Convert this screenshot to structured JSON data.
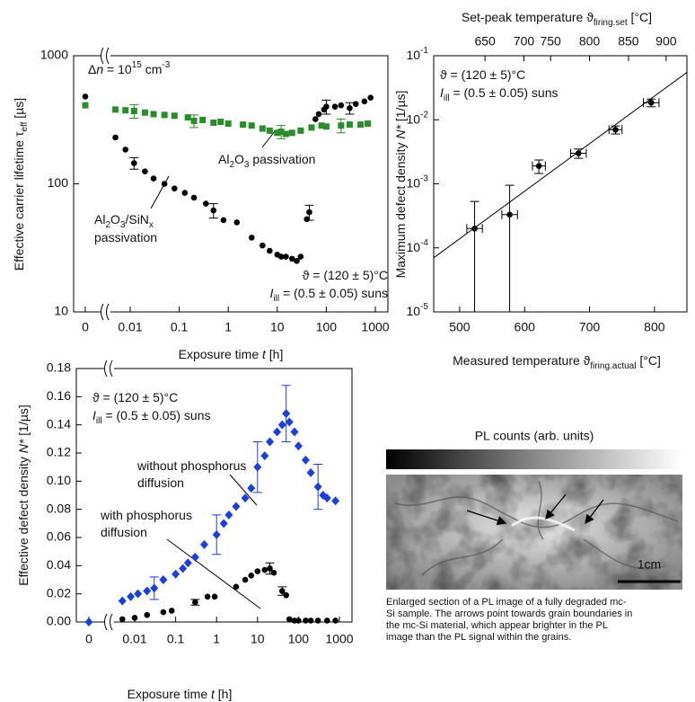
{
  "chart_data": [
    {
      "type": "scatter",
      "xlog": true,
      "ylog": true,
      "xlabel": [
        "Exposure time ",
        {
          "i": "t"
        },
        " [h]"
      ],
      "ylabel": [
        "Effective carrier lifetime τ",
        {
          "sub": "eff"
        },
        " [µs]"
      ],
      "xlim": [
        0,
        1000
      ],
      "ylim": [
        10,
        1000
      ],
      "xticks": [
        0,
        0.01,
        0.1,
        1,
        10,
        100,
        1000
      ],
      "yticks": [
        10,
        100,
        1000
      ],
      "annotations": [
        [
          "Δ",
          {
            "i": "n"
          },
          " = 10",
          {
            "sup": "15"
          },
          " cm",
          {
            "sup": "-3"
          }
        ],
        [
          "ϑ = (120 ± 5)°C"
        ],
        [
          {
            "i": "I"
          },
          {
            "sub": "ill"
          },
          " = (0.5 ± 0.05) suns"
        ],
        [
          "Al",
          {
            "sub": "2"
          },
          "O",
          {
            "sub": "3"
          },
          " passivation"
        ],
        [
          "Al",
          {
            "sub": "2"
          },
          "O",
          {
            "sub": "3"
          },
          "/SiN",
          {
            "sub": "x"
          }
        ],
        [
          "passivation"
        ]
      ],
      "series": [
        {
          "color": "#000000",
          "marker": "circle",
          "x": [
            0,
            0.005,
            0.008,
            0.012,
            0.02,
            0.03,
            0.05,
            0.08,
            0.13,
            0.2,
            0.35,
            0.5,
            0.8,
            1.5,
            3,
            5,
            7,
            10,
            12,
            15,
            20,
            25,
            30,
            40,
            45,
            60,
            70,
            90,
            100,
            150,
            200,
            300,
            400,
            600,
            800
          ],
          "values": [
            480,
            230,
            185,
            145,
            125,
            110,
            100,
            92,
            85,
            78,
            70,
            62,
            52,
            50,
            38,
            33,
            30,
            28,
            27,
            27,
            26,
            25,
            27,
            53,
            60,
            320,
            350,
            380,
            400,
            400,
            410,
            390,
            420,
            440,
            470
          ],
          "yerr": [
            null,
            null,
            null,
            15,
            null,
            null,
            null,
            null,
            null,
            null,
            null,
            8,
            null,
            null,
            null,
            null,
            null,
            null,
            null,
            null,
            null,
            null,
            null,
            null,
            8,
            null,
            null,
            null,
            50,
            null,
            null,
            40,
            null,
            null,
            null
          ]
        },
        {
          "color": "#2a8c2a",
          "marker": "square",
          "x": [
            0,
            0.005,
            0.008,
            0.012,
            0.02,
            0.03,
            0.05,
            0.08,
            0.15,
            0.2,
            0.3,
            0.5,
            0.7,
            1,
            2,
            3,
            5,
            7,
            10,
            12,
            15,
            20,
            30,
            50,
            80,
            100,
            200,
            300,
            500,
            700
          ],
          "values": [
            410,
            380,
            375,
            370,
            360,
            350,
            345,
            340,
            330,
            310,
            315,
            300,
            305,
            295,
            290,
            285,
            270,
            260,
            250,
            255,
            245,
            250,
            260,
            275,
            285,
            280,
            285,
            290,
            290,
            295
          ],
          "yerr": [
            null,
            null,
            null,
            45,
            null,
            null,
            null,
            null,
            null,
            35,
            null,
            null,
            null,
            null,
            null,
            null,
            null,
            null,
            null,
            30,
            null,
            null,
            null,
            null,
            null,
            null,
            35,
            null,
            null,
            null
          ]
        }
      ]
    },
    {
      "type": "scatter",
      "ylog": true,
      "xlabel": [
        "Measured temperature ϑ",
        {
          "sub": "firing.actual"
        },
        " [°C]"
      ],
      "x2label": [
        "Set-peak temperature ϑ",
        {
          "sub": "firing.set"
        },
        " [°C]"
      ],
      "ylabel": [
        "Maximum defect density ",
        {
          "i": "N*"
        },
        " [1/µs]"
      ],
      "xlim": [
        460,
        850
      ],
      "xticks": [
        500,
        600,
        700,
        800
      ],
      "x2ticks": [
        {
          "value": 539,
          "label": "650"
        },
        {
          "value": 599,
          "label": "700"
        },
        {
          "value": 640,
          "label": "750"
        },
        {
          "value": 700,
          "label": "800"
        },
        {
          "value": 760,
          "label": "850"
        },
        {
          "value": 818,
          "label": "900"
        }
      ],
      "ylim": [
        1e-05,
        0.1
      ],
      "yticks": [
        {
          "value": 1e-05,
          "label": [
            "10",
            {
              "sup": "-5"
            }
          ]
        },
        {
          "value": 0.0001,
          "label": [
            "10",
            {
              "sup": "-4"
            }
          ]
        },
        {
          "value": 0.001,
          "label": [
            "10",
            {
              "sup": "-3"
            }
          ]
        },
        {
          "value": 0.01,
          "label": [
            "10",
            {
              "sup": "-2"
            }
          ]
        },
        {
          "value": 0.1,
          "label": [
            "10",
            {
              "sup": "-1"
            }
          ]
        }
      ],
      "annotations": [
        [
          "ϑ = (120 ± 5)°C"
        ],
        [
          {
            "i": "I"
          },
          {
            "sub": "ill"
          },
          " = (0.5 ± 0.05) suns"
        ]
      ],
      "series": [
        {
          "color": "#000000",
          "marker": "circle",
          "x": [
            523,
            577,
            622,
            683,
            740,
            795
          ],
          "xerr": [
            12,
            12,
            10,
            12,
            10,
            12
          ],
          "values": [
            0.0002,
            0.00033,
            0.0019,
            0.003,
            0.007,
            0.0185
          ],
          "yerr": [
            0.00033,
            0.00062,
            0.00045,
            0.0005,
            0.001,
            0.0025
          ]
        }
      ],
      "fit": {
        "x": [
          460,
          850
        ],
        "values": [
          7e-05,
          0.055
        ]
      }
    },
    {
      "type": "scatter",
      "xlog": true,
      "xlabel": [
        "Exposure time ",
        {
          "i": "t"
        },
        " [h]"
      ],
      "ylabel": [
        "Effective defect density ",
        {
          "i": "N*"
        },
        " [1/µs]"
      ],
      "xlim": [
        0,
        1000
      ],
      "ylim": [
        0,
        0.18
      ],
      "xticks": [
        0,
        0.01,
        0.1,
        1,
        10,
        100,
        1000
      ],
      "yticks": [
        {
          "value": 0,
          "label": "0.00"
        },
        0.02,
        0.04,
        0.06,
        0.08,
        {
          "value": 0.1,
          "label": "0.10"
        },
        0.12,
        0.14,
        0.16,
        0.18
      ],
      "annotations": [
        [
          "ϑ = (120 ± 5)°C"
        ],
        [
          {
            "i": "I"
          },
          {
            "sub": "ill"
          },
          " = (0.5 ± 0.05) suns"
        ],
        [
          "without phosphorus"
        ],
        [
          "diffusion"
        ],
        [
          "with phosphorus"
        ],
        [
          "diffusion"
        ]
      ],
      "series": [
        {
          "color": "#1a3fe0",
          "marker": "diamond",
          "x": [
            0,
            0.005,
            0.008,
            0.012,
            0.02,
            0.03,
            0.05,
            0.1,
            0.15,
            0.2,
            0.3,
            0.5,
            1,
            1.5,
            2,
            3,
            5,
            7,
            10,
            15,
            20,
            30,
            40,
            50,
            60,
            80,
            100,
            150,
            200,
            300,
            400,
            500,
            800
          ],
          "values": [
            0,
            0.015,
            0.018,
            0.02,
            0.022,
            0.024,
            0.03,
            0.034,
            0.038,
            0.042,
            0.046,
            0.055,
            0.062,
            0.07,
            0.076,
            0.082,
            0.088,
            0.095,
            0.11,
            0.118,
            0.128,
            0.135,
            0.14,
            0.148,
            0.142,
            0.135,
            0.125,
            0.115,
            0.106,
            0.096,
            0.09,
            0.088,
            0.086
          ],
          "yerr": [
            null,
            null,
            null,
            null,
            null,
            0.008,
            null,
            null,
            null,
            null,
            null,
            null,
            0.014,
            null,
            null,
            null,
            null,
            null,
            0.018,
            null,
            null,
            null,
            null,
            0.02,
            null,
            null,
            null,
            null,
            null,
            0.016,
            null,
            null,
            null
          ]
        },
        {
          "color": "#000000",
          "marker": "circle",
          "x": [
            0.005,
            0.01,
            0.02,
            0.05,
            0.08,
            0.3,
            0.6,
            0.9,
            3,
            5,
            7,
            10,
            15,
            20,
            25,
            40,
            50,
            60,
            80,
            100,
            150,
            200,
            300,
            500,
            800
          ],
          "values": [
            0.002,
            0.003,
            0.005,
            0.007,
            0.008,
            0.014,
            0.018,
            0.018,
            0.025,
            0.03,
            0.033,
            0.036,
            0.037,
            0.038,
            0.035,
            0.022,
            0.019,
            0.002,
            0.001,
            0.001,
            0.001,
            0.001,
            0.001,
            0.001,
            0.001
          ],
          "yerr": [
            null,
            null,
            null,
            null,
            null,
            0.002,
            null,
            null,
            null,
            null,
            null,
            null,
            null,
            0.004,
            null,
            0.003,
            null,
            null,
            null,
            null,
            null,
            null,
            null,
            null,
            null
          ]
        }
      ]
    }
  ],
  "pl_image": {
    "title": "PL counts (arb. units)",
    "scale_bar": "1cm",
    "caption": [
      "Enlarged section of a PL image of a fully degraded mc-",
      "Si sample. The arrows point towards grain boundaries in",
      "the mc-Si material, which appear brighter in the PL",
      "image than the PL signal within the grains."
    ]
  }
}
